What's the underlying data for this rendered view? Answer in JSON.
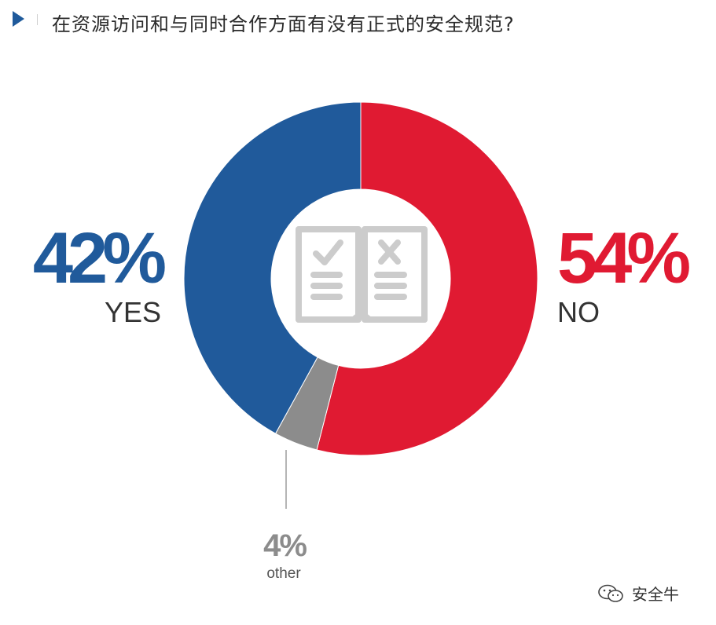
{
  "header": {
    "title": "在资源访问和与同时合作方面有没有正式的安全规范?"
  },
  "colors": {
    "yes": "#205a9b",
    "no": "#e01a32",
    "other": "#8c8c8c",
    "icon": "#cccccc",
    "title_marker": "#1f5a9b"
  },
  "chart_data": {
    "type": "pie",
    "style": "donut",
    "title": "在资源访问和与同时合作方面有没有正式的安全规范?",
    "center_icon": "open-book-check-cross-icon",
    "slices": [
      {
        "key": "no",
        "label": "NO",
        "value": 54,
        "display": "54%"
      },
      {
        "key": "other",
        "label": "other",
        "value": 4,
        "display": "4%"
      },
      {
        "key": "yes",
        "label": "YES",
        "value": 42,
        "display": "42%"
      }
    ]
  },
  "watermark": {
    "icon": "wechat-icon",
    "text": "安全牛"
  }
}
